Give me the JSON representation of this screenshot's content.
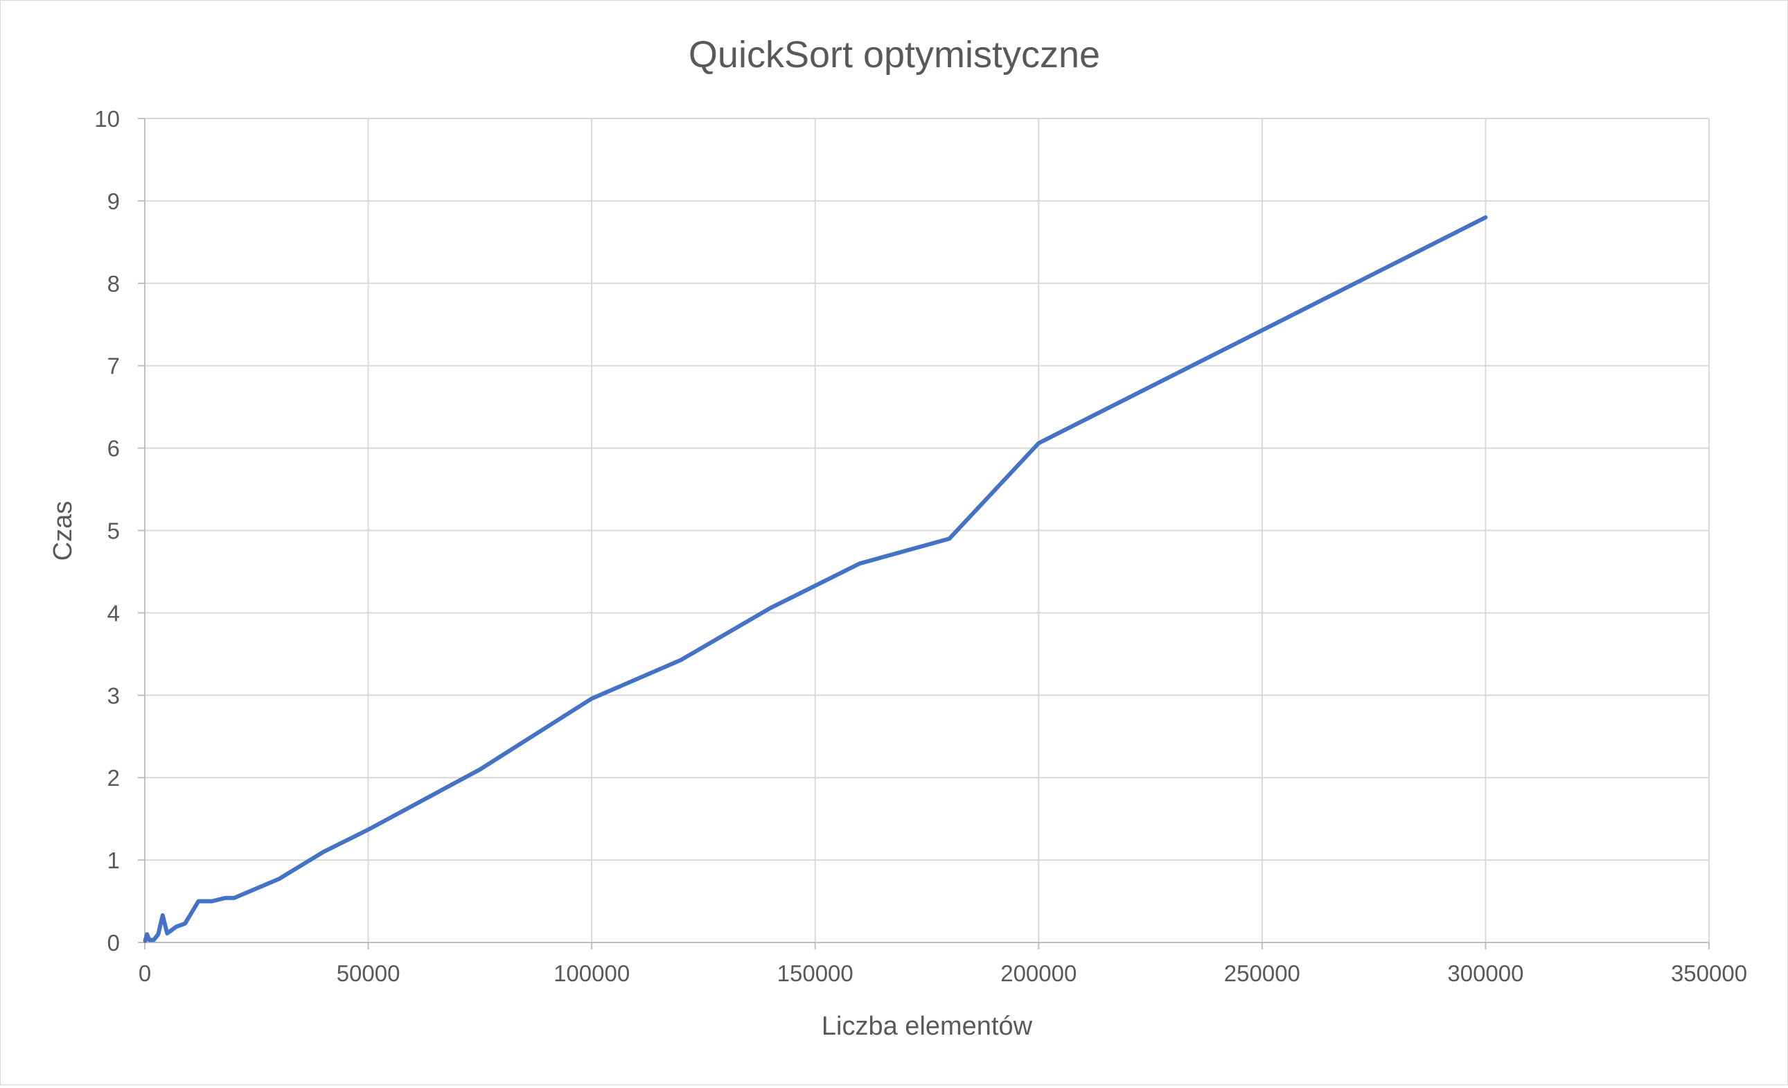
{
  "chart_data": {
    "type": "line",
    "title": "QuickSort optymistyczne",
    "xlabel": "Liczba elementów",
    "ylabel": "Czas",
    "xlim": [
      0,
      350000
    ],
    "ylim": [
      0,
      10
    ],
    "x_ticks": [
      "0",
      "50000",
      "100000",
      "150000",
      "200000",
      "250000",
      "300000",
      "350000"
    ],
    "y_ticks": [
      "0",
      "1",
      "2",
      "3",
      "4",
      "5",
      "6",
      "7",
      "8",
      "9",
      "10"
    ],
    "grid": true,
    "legend": "none",
    "series": [
      {
        "color": "#4472C4",
        "x": [
          100,
          500,
          1000,
          2000,
          3000,
          4000,
          5000,
          7000,
          9000,
          12000,
          15000,
          18000,
          20000,
          30000,
          40000,
          50000,
          75000,
          100000,
          120000,
          140000,
          160000,
          180000,
          200000,
          300000
        ],
        "y": [
          0.02,
          0.1,
          0.03,
          0.03,
          0.1,
          0.33,
          0.11,
          0.19,
          0.23,
          0.5,
          0.5,
          0.54,
          0.54,
          0.77,
          1.1,
          1.37,
          2.1,
          2.96,
          3.43,
          4.06,
          4.6,
          4.9,
          6.06,
          8.8
        ]
      }
    ]
  }
}
